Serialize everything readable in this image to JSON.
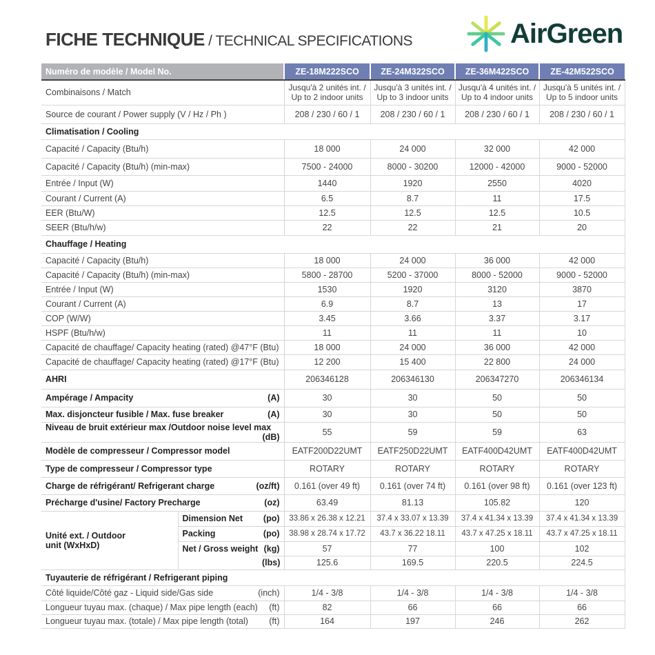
{
  "title": {
    "bold": "FICHE TECHNIQUE",
    "light": " / TECHNICAL SPECIFICATIONS"
  },
  "logo": {
    "text": "AirGreen",
    "colors": [
      "#e6e84a",
      "#3fc7a0",
      "#2bb0c8"
    ]
  },
  "header": {
    "label": "Numéro de modèle / Model No.",
    "models": [
      "ZE-18M222SCO",
      "ZE-24M322SCO",
      "ZE-36M422SCO",
      "ZE-42M522SCO"
    ]
  },
  "rows": [
    {
      "label": "Combinaisons / Match",
      "values": [
        "Jusqu'à 2 unités int. / Up to 2 indoor units",
        "Jusqu'à 3 unités int. / Up to 3 indoor units",
        "Jusqu'à 4 unités int. / Up to 4 indoor units",
        "Jusqu'à 5 unités int. / Up to 5 indoor units"
      ]
    },
    {
      "label": "Source de courant / Power supply (V / Hz / Ph )",
      "values": [
        "208 / 230 / 60 / 1",
        "208 / 230 / 60 / 1",
        "208 / 230 / 60 / 1",
        "208 / 230 / 60 / 1"
      ]
    },
    {
      "section": "Climatisation / Cooling"
    },
    {
      "label": "Capacité / Capacity  (Btu/h)",
      "values": [
        "18 000",
        "24 000",
        "32 000",
        "42 000"
      ]
    },
    {
      "label": "Capacité / Capacity  (Btu/h) (min-max)",
      "values": [
        "7500 - 24000",
        "8000 - 30200",
        "12000 - 42000",
        "9000 - 52000"
      ]
    },
    {
      "label": "Entrée / Input (W)",
      "values": [
        "1440",
        "1920",
        "2550",
        "4020"
      ]
    },
    {
      "label": "Courant / Current (A)",
      "values": [
        "6.5",
        "8.7",
        "11",
        "17.5"
      ]
    },
    {
      "label": "EER (Btu/W)",
      "values": [
        "12.5",
        "12.5",
        "12.5",
        "10.5"
      ]
    },
    {
      "label": "SEER (Btu/h/w)",
      "values": [
        "22",
        "22",
        "21",
        "20"
      ]
    },
    {
      "section": "Chauffage / Heating"
    },
    {
      "label": "Capacité / Capacity  (Btu/h)",
      "values": [
        "18 000",
        "24 000",
        "36 000",
        "42 000"
      ]
    },
    {
      "label": "Capacité / Capacity  (Btu/h) (min-max)",
      "values": [
        "5800 - 28700",
        "5200 - 37000",
        "8000 - 52000",
        "9000 - 52000"
      ]
    },
    {
      "label": "Entrée / Input (W)",
      "values": [
        "1530",
        "1920",
        "3120",
        "3870"
      ]
    },
    {
      "label": "Courant / Current (A)",
      "values": [
        "6.9",
        "8.7",
        "13",
        "17"
      ]
    },
    {
      "label": "COP (W/W)",
      "values": [
        "3.45",
        "3.66",
        "3.37",
        "3.17"
      ]
    },
    {
      "label": "HSPF (Btu/h/w)",
      "values": [
        "11",
        "11",
        "11",
        "10"
      ]
    },
    {
      "label": "Capacité de chauffage/ Capacity heating (rated) @47°F (Btu)",
      "values": [
        "18 000",
        "24 000",
        "36 000",
        "42 000"
      ]
    },
    {
      "label": "Capacité de chauffage/ Capacity heating (rated) @17°F (Btu)",
      "values": [
        "12 200",
        "15 400",
        "22 800",
        "24 000"
      ]
    },
    {
      "label": "AHRI",
      "bold": true,
      "values": [
        "206346128",
        "206346130",
        "206347270",
        "206346134"
      ]
    },
    {
      "label": "Ampérage / Ampacity",
      "unit": "(A)",
      "bold": true,
      "values": [
        "30",
        "30",
        "50",
        "50"
      ]
    },
    {
      "label": "Max. disjoncteur fusible / Max. fuse breaker",
      "unit": "(A)",
      "bold": true,
      "values": [
        "30",
        "30",
        "50",
        "50"
      ]
    },
    {
      "label": "Niveau de bruit extérieur max /Outdoor noise level max",
      "unit": "(dB)",
      "bold": true,
      "values": [
        "55",
        "59",
        "59",
        "63"
      ]
    },
    {
      "label": "Modèle de compresseur / Compressor model",
      "bold": true,
      "values": [
        "EATF200D22UMT",
        "EATF250D22UMT",
        "EATF400D42UMT",
        "EATF400D42UMT"
      ]
    },
    {
      "label": "Type de compresseur / Compressor type",
      "bold": true,
      "values": [
        "ROTARY",
        "ROTARY",
        "ROTARY",
        "ROTARY"
      ]
    },
    {
      "label": "Charge de réfrigérant/ Refrigerant charge",
      "unit": "(oz/ft)",
      "bold": true,
      "values": [
        "0.161 (over 49 ft)",
        "0.161 (over 74 ft)",
        "0.161 (over 98 ft)",
        "0.161 (over 123 ft)"
      ]
    },
    {
      "label": "Précharge d'usine/ Factory Precharge",
      "unit": "(oz)",
      "bold": true,
      "values": [
        "63.49",
        "81.13",
        "105.82",
        "120"
      ]
    },
    {
      "group": "Unité ext. / Outdoor unit (WxHxD)",
      "subs": [
        {
          "label": "Dimension Net",
          "unit": "(po)",
          "values": [
            "33.86 x 26.38 x 12.21",
            "37.4 x 33.07 x 13.39",
            "37.4 x 41.34 x 13.39",
            "37.4 x 41.34 x 13.39"
          ]
        },
        {
          "label": "Packing",
          "unit": "(po)",
          "values": [
            "38.98 x 28.74 x 17.72",
            "43.7 x 36.22 18.11",
            "43.7 x 47.25 x 18.11",
            "43.7 x 47.25 x 18.11"
          ]
        },
        {
          "label": "Net / Gross weight",
          "unit": "(kg)",
          "values": [
            "57",
            "77",
            "100",
            "102"
          ]
        },
        {
          "label": "",
          "unit": "(lbs)",
          "values": [
            "125.6",
            "169.5",
            "220.5",
            "224.5"
          ]
        }
      ]
    },
    {
      "section": "Tuyauterie de réfrigérant / Refrigerant piping"
    },
    {
      "label": "Côté liquide/Côté gaz - Liquid side/Gas side",
      "unit": "(inch)",
      "values": [
        "1/4 - 3/8",
        "1/4 - 3/8",
        "1/4 - 3/8",
        "1/4 - 3/8"
      ]
    },
    {
      "label": "Longueur tuyau max. (chaque) / Max pipe length (each)",
      "unit": "(ft)",
      "values": [
        "82",
        "66",
        "66",
        "66"
      ]
    },
    {
      "label": "Longueur tuyau max. (totale) / Max pipe length (total)",
      "unit": "(ft)",
      "values": [
        "164",
        "197",
        "246",
        "262"
      ]
    }
  ]
}
